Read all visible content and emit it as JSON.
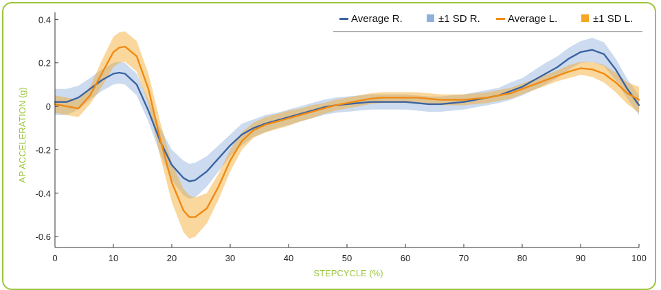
{
  "chart_data": {
    "type": "line",
    "xlabel": "STEPCYCLE (%)",
    "ylabel": "AP ACCELERATION (g)",
    "xlim": [
      0,
      100
    ],
    "ylim": [
      -0.65,
      0.42
    ],
    "x_ticks": [
      0,
      10,
      20,
      30,
      40,
      50,
      60,
      70,
      80,
      90,
      100
    ],
    "y_ticks": [
      0.4,
      0.2,
      0,
      -0.2,
      -0.4,
      -0.6
    ],
    "y_tick_labels": [
      "0.4",
      "0.2",
      "0",
      "-0.2",
      "-0.4",
      "-0.6"
    ],
    "grid": false,
    "legend_position": "top-right",
    "legend": [
      {
        "label": "Average R.",
        "kind": "line",
        "color": "#3b63a0"
      },
      {
        "label": "±1 SD R.",
        "kind": "patch",
        "color": "#8fb0dc"
      },
      {
        "label": "Average L.",
        "kind": "line",
        "color": "#f08a12"
      },
      {
        "label": "±1 SD L.",
        "kind": "patch",
        "color": "#f5a623"
      }
    ],
    "x": [
      0,
      2,
      4,
      6,
      8,
      10,
      11,
      12,
      14,
      16,
      18,
      20,
      22,
      23,
      24,
      26,
      28,
      30,
      32,
      34,
      36,
      38,
      40,
      42,
      44,
      46,
      48,
      50,
      52,
      54,
      56,
      58,
      60,
      62,
      64,
      66,
      68,
      70,
      72,
      74,
      76,
      78,
      80,
      82,
      84,
      86,
      88,
      90,
      92,
      94,
      96,
      98,
      100
    ],
    "series": [
      {
        "name": "Average R.",
        "color": "#3b63a0",
        "values": [
          0.02,
          0.02,
          0.04,
          0.08,
          0.12,
          0.15,
          0.155,
          0.15,
          0.1,
          -0.02,
          -0.16,
          -0.27,
          -0.33,
          -0.345,
          -0.34,
          -0.3,
          -0.24,
          -0.18,
          -0.13,
          -0.1,
          -0.08,
          -0.065,
          -0.05,
          -0.035,
          -0.02,
          -0.005,
          0.005,
          0.01,
          0.015,
          0.02,
          0.02,
          0.02,
          0.02,
          0.015,
          0.01,
          0.01,
          0.015,
          0.02,
          0.03,
          0.04,
          0.05,
          0.07,
          0.09,
          0.12,
          0.15,
          0.18,
          0.22,
          0.25,
          0.26,
          0.24,
          0.17,
          0.08,
          0.005
        ],
        "sd": [
          0.06,
          0.06,
          0.055,
          0.05,
          0.05,
          0.05,
          0.05,
          0.05,
          0.05,
          0.05,
          0.06,
          0.07,
          0.08,
          0.08,
          0.08,
          0.07,
          0.06,
          0.05,
          0.05,
          0.04,
          0.04,
          0.035,
          0.035,
          0.035,
          0.035,
          0.035,
          0.035,
          0.035,
          0.035,
          0.035,
          0.035,
          0.035,
          0.035,
          0.035,
          0.035,
          0.035,
          0.035,
          0.035,
          0.035,
          0.035,
          0.035,
          0.04,
          0.04,
          0.045,
          0.05,
          0.05,
          0.05,
          0.05,
          0.055,
          0.055,
          0.05,
          0.045,
          0.045
        ]
      },
      {
        "name": "Average L.",
        "color": "#f08a12",
        "values": [
          0.01,
          0.0,
          -0.01,
          0.05,
          0.15,
          0.25,
          0.27,
          0.275,
          0.23,
          0.08,
          -0.15,
          -0.35,
          -0.48,
          -0.51,
          -0.51,
          -0.47,
          -0.37,
          -0.25,
          -0.16,
          -0.11,
          -0.085,
          -0.07,
          -0.055,
          -0.04,
          -0.025,
          -0.01,
          0.005,
          0.015,
          0.025,
          0.035,
          0.04,
          0.04,
          0.04,
          0.04,
          0.035,
          0.03,
          0.03,
          0.03,
          0.035,
          0.04,
          0.05,
          0.06,
          0.08,
          0.1,
          0.12,
          0.14,
          0.16,
          0.175,
          0.17,
          0.15,
          0.11,
          0.06,
          0.03
        ],
        "sd": [
          0.04,
          0.04,
          0.04,
          0.04,
          0.06,
          0.07,
          0.07,
          0.07,
          0.07,
          0.07,
          0.08,
          0.09,
          0.1,
          0.1,
          0.09,
          0.07,
          0.06,
          0.05,
          0.04,
          0.035,
          0.035,
          0.035,
          0.035,
          0.03,
          0.03,
          0.025,
          0.025,
          0.025,
          0.025,
          0.025,
          0.025,
          0.025,
          0.025,
          0.025,
          0.025,
          0.025,
          0.025,
          0.025,
          0.025,
          0.025,
          0.025,
          0.025,
          0.025,
          0.025,
          0.025,
          0.025,
          0.03,
          0.03,
          0.035,
          0.04,
          0.045,
          0.05,
          0.06
        ]
      }
    ]
  }
}
